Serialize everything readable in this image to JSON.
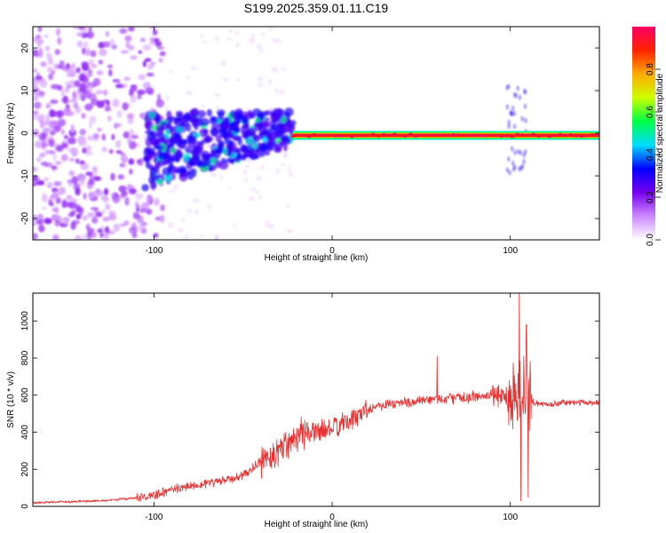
{
  "title": "S199.2025.359.01.11.C19",
  "chart_data": [
    {
      "type": "heatmap",
      "name": "spectrogram",
      "xlabel": "Height of straight line (km)",
      "ylabel": "Frequency (Hz)",
      "xlim": [
        -168,
        150
      ],
      "ylim": [
        -25,
        25
      ],
      "xticks": [
        -100,
        0,
        100
      ],
      "yticks": [
        -20,
        -10,
        0,
        10,
        20
      ],
      "grid": false,
      "colorbar": {
        "label": "Normalized spectral amplitude",
        "range": [
          0.0,
          1.0
        ],
        "ticks": [
          0.0,
          0.2,
          0.4,
          0.6,
          0.8
        ],
        "colormap": [
          "#ffffff",
          "#cc88ff",
          "#7700ee",
          "#0000ff",
          "#00ddff",
          "#00ff44",
          "#ccff00",
          "#ffaa00",
          "#ff2200",
          "#ff0066"
        ]
      },
      "features": [
        {
          "label": "scattered noise",
          "x_range": [
            -168,
            -95
          ],
          "f_range": [
            -25,
            25
          ],
          "amplitude": 0.15
        },
        {
          "label": "broadband cloud",
          "x_range": [
            -105,
            -22
          ],
          "f_range": [
            -15,
            8
          ],
          "amplitude": 0.25
        },
        {
          "label": "tonal line",
          "x_range": [
            -22,
            150
          ],
          "frequency": -0.5,
          "amplitude": 1.0
        },
        {
          "label": "burst near 100 km",
          "x_range": [
            98,
            110
          ],
          "f_range": [
            -10,
            12
          ],
          "amplitude": 0.3
        }
      ]
    },
    {
      "type": "line",
      "name": "snr",
      "xlabel": "Height of straight line (km)",
      "ylabel": "SNR (10 * v/v)",
      "xlim": [
        -168,
        150
      ],
      "ylim": [
        0,
        1150
      ],
      "xticks": [
        -100,
        0,
        100
      ],
      "yticks": [
        0,
        200,
        400,
        600,
        800,
        1000
      ],
      "grid": false,
      "series": [
        {
          "name": "SNR",
          "color": "#e83030",
          "x": [
            -168,
            -150,
            -130,
            -110,
            -100,
            -90,
            -80,
            -70,
            -60,
            -50,
            -40,
            -30,
            -20,
            -10,
            0,
            10,
            20,
            30,
            40,
            50,
            60,
            70,
            80,
            90,
            100,
            105,
            110,
            115,
            120,
            130,
            140,
            150
          ],
          "values": [
            20,
            25,
            30,
            45,
            60,
            90,
            110,
            125,
            140,
            165,
            240,
            300,
            390,
            400,
            420,
            460,
            530,
            550,
            560,
            565,
            580,
            585,
            590,
            600,
            595,
            600,
            570,
            555,
            550,
            560,
            560,
            560
          ],
          "spikes": [
            {
              "x": 59,
              "value": 810
            },
            {
              "x": 105,
              "value": 1150
            },
            {
              "x": 106,
              "value": 30
            },
            {
              "x": 109,
              "value": 980
            },
            {
              "x": 110,
              "value": 50
            }
          ]
        }
      ]
    }
  ]
}
